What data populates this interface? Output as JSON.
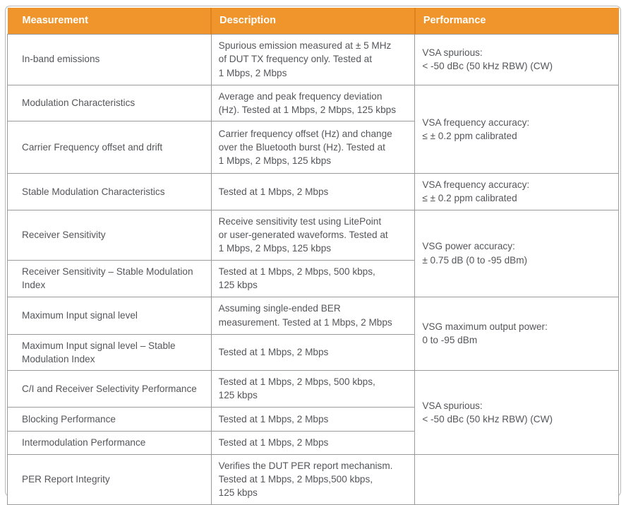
{
  "colors": {
    "accent": "#F0952B",
    "accent_divider": "#DD8420",
    "grid": "#9B9B9B",
    "outer_border": "#B9B9B9",
    "text": "#55565A",
    "header_text": "#FFFFFF"
  },
  "table": {
    "columns": [
      {
        "label": "Measurement"
      },
      {
        "label": "Description"
      },
      {
        "label": "Performance"
      }
    ],
    "rows": [
      {
        "measurement": "In-band emissions",
        "description": "Spurious emission measured at ± 5 MHz\nof DUT TX frequency only. Tested at\n1 Mbps, 2 Mbps",
        "performance": "VSA spurious:\n< -50 dBc (50 kHz RBW) (CW)"
      },
      {
        "measurement": "Modulation Characteristics",
        "description": "Average and peak frequency deviation\n(Hz). Tested at 1 Mbps, 2 Mbps, 125 kbps",
        "performance": "VSA frequency accuracy:\n≤ ± 0.2 ppm calibrated"
      },
      {
        "measurement": "Carrier Frequency offset and drift",
        "description": "Carrier frequency offset (Hz) and change\nover the Bluetooth burst (Hz). Tested at\n1 Mbps, 2 Mbps, 125 kbps"
      },
      {
        "measurement": "Stable Modulation Characteristics",
        "description": "Tested at 1 Mbps, 2 Mbps",
        "performance": "VSA frequency accuracy:\n≤ ± 0.2 ppm calibrated"
      },
      {
        "measurement": "Receiver Sensitivity",
        "description": "Receive sensitivity test using LitePoint\nor user-generated waveforms. Tested at\n1 Mbps, 2 Mbps, 125 kbps",
        "performance": "VSG power accuracy:\n± 0.75 dB (0 to -95 dBm)"
      },
      {
        "measurement": "Receiver Sensitivity – Stable Modulation\nIndex",
        "description": "Tested at 1 Mbps, 2 Mbps, 500 kbps,\n125 kbps"
      },
      {
        "measurement": "Maximum Input signal level",
        "description": "Assuming single-ended BER\nmeasurement. Tested at 1 Mbps, 2 Mbps",
        "performance": "VSG maximum output power:\n0 to -95 dBm"
      },
      {
        "measurement": "Maximum Input signal level – Stable\nModulation Index",
        "description": "Tested at 1 Mbps, 2 Mbps"
      },
      {
        "measurement": "C/I and Receiver Selectivity Performance",
        "description": "Tested at 1 Mbps, 2 Mbps, 500 kbps,\n125 kbps",
        "performance": "VSA spurious:\n< -50 dBc (50 kHz RBW) (CW)"
      },
      {
        "measurement": "Blocking Performance",
        "description": "Tested at 1 Mbps, 2 Mbps"
      },
      {
        "measurement": "Intermodulation Performance",
        "description": "Tested at 1 Mbps, 2 Mbps"
      },
      {
        "measurement": "PER Report Integrity",
        "description": "Verifies the DUT PER report mechanism.\nTested at 1 Mbps, 2 Mbps,500 kbps,\n125 kbps",
        "performance": ""
      }
    ]
  }
}
